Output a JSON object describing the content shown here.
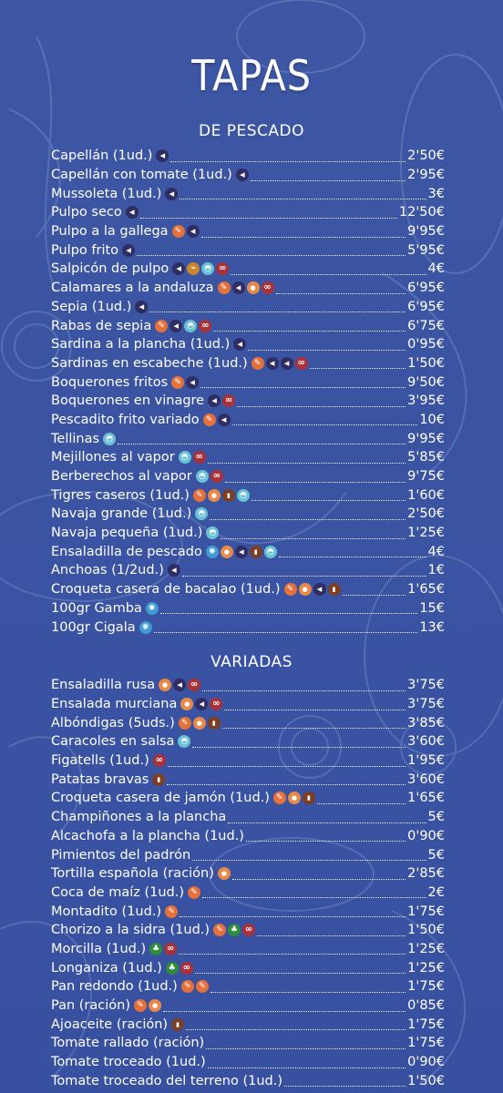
{
  "title": "TAPAS",
  "sections": [
    {
      "title": "DE PESCADO",
      "items": [
        {
          "name": "Capellán (1ud.)",
          "icons": [
            "fish"
          ],
          "price": "2'50€"
        },
        {
          "name": "Capellán con tomate (1ud.)",
          "icons": [
            "fish"
          ],
          "price": "2'95€"
        },
        {
          "name": "Mussoleta (1ud.)",
          "icons": [
            "fish"
          ],
          "price": "3€"
        },
        {
          "name": "Pulpo seco",
          "icons": [
            "fish"
          ],
          "price": "12'50€"
        },
        {
          "name": "Pulpo a la gallega",
          "icons": [
            "gluten",
            "fish"
          ],
          "price": "9'95€"
        },
        {
          "name": "Pulpo frito",
          "icons": [
            "fish"
          ],
          "price": "5'95€"
        },
        {
          "name": "Salpicón de pulpo",
          "icons": [
            "fish",
            "mustard",
            "mollusc",
            "sulfite"
          ],
          "price": "4€"
        },
        {
          "name": "Calamares a la andaluza",
          "icons": [
            "gluten",
            "fish",
            "egg",
            "sulfite"
          ],
          "price": "6'95€"
        },
        {
          "name": "Sepia (1ud.)",
          "icons": [
            "fish"
          ],
          "price": "6'95€"
        },
        {
          "name": "Rabas de sepia",
          "icons": [
            "gluten",
            "fish",
            "mollusc",
            "sulfite"
          ],
          "price": "6'75€"
        },
        {
          "name": "Sardina a la plancha (1ud.)",
          "icons": [
            "fish"
          ],
          "price": "0'95€"
        },
        {
          "name": "Sardinas en escabeche (1ud.)",
          "icons": [
            "gluten",
            "fish",
            "fish",
            "sulfite"
          ],
          "price": "1'50€"
        },
        {
          "name": "Boquerones fritos",
          "icons": [
            "gluten",
            "fish"
          ],
          "price": "9'50€"
        },
        {
          "name": "Boquerones en vinagre",
          "icons": [
            "fish",
            "sulfite"
          ],
          "price": "3'95€"
        },
        {
          "name": "Pescadito frito variado",
          "icons": [
            "gluten",
            "fish"
          ],
          "price": "10€"
        },
        {
          "name": "Tellinas",
          "icons": [
            "mollusc"
          ],
          "price": "9'95€"
        },
        {
          "name": "Mejillones al vapor",
          "icons": [
            "mollusc",
            "sulfite"
          ],
          "price": "5'85€"
        },
        {
          "name": "Berberechos al vapor",
          "icons": [
            "mollusc",
            "sulfite"
          ],
          "price": "9'75€"
        },
        {
          "name": "Tigres caseros (1ud.)",
          "icons": [
            "gluten",
            "egg",
            "milk",
            "mollusc"
          ],
          "price": "1'60€"
        },
        {
          "name": "Navaja grande (1ud.)",
          "icons": [
            "mollusc"
          ],
          "price": "2'50€"
        },
        {
          "name": "Navaja pequeña (1ud.)",
          "icons": [
            "mollusc"
          ],
          "price": "1'25€"
        },
        {
          "name": "Ensaladilla de pescado",
          "icons": [
            "crust",
            "egg",
            "fish",
            "milk",
            "mollusc"
          ],
          "price": "4€"
        },
        {
          "name": "Anchoas (1/2ud.)",
          "icons": [
            "fish"
          ],
          "price": "1€"
        },
        {
          "name": "Croqueta casera de bacalao (1ud.)",
          "icons": [
            "gluten",
            "egg",
            "fish",
            "milk"
          ],
          "price": "1'65€"
        },
        {
          "name": "100gr Gamba",
          "icons": [
            "crust"
          ],
          "price": "15€"
        },
        {
          "name": "100gr Cigala",
          "icons": [
            "crust"
          ],
          "price": "13€"
        }
      ]
    },
    {
      "title": "VARIADAS",
      "items": [
        {
          "name": "Ensaladilla rusa",
          "icons": [
            "egg",
            "fish",
            "sulfite"
          ],
          "price": "3'75€"
        },
        {
          "name": "Ensalada murciana",
          "icons": [
            "egg",
            "fish",
            "sulfite"
          ],
          "price": "3'75€"
        },
        {
          "name": "Albóndigas (5uds.)",
          "icons": [
            "gluten",
            "egg",
            "milk"
          ],
          "price": "3'85€"
        },
        {
          "name": "Caracoles en salsa",
          "icons": [
            "mollusc"
          ],
          "price": "3'60€"
        },
        {
          "name": "Figatells (1ud.)",
          "icons": [
            "sulfite"
          ],
          "price": "1'95€"
        },
        {
          "name": "Patatas bravas",
          "icons": [
            "milk"
          ],
          "price": "3'60€"
        },
        {
          "name": "Croqueta casera de jamón (1ud.)",
          "icons": [
            "gluten",
            "egg",
            "milk"
          ],
          "price": "1'65€"
        },
        {
          "name": "Champiñones a la plancha",
          "icons": [],
          "price": "5€"
        },
        {
          "name": "Alcachofa a la plancha (1ud.)",
          "icons": [],
          "price": "0'90€"
        },
        {
          "name": "Pimientos del padrón",
          "icons": [],
          "price": "5€"
        },
        {
          "name": "Tortilla española (ración)",
          "icons": [
            "egg"
          ],
          "price": "2'85€"
        },
        {
          "name": "Coca de maíz (1ud.)",
          "icons": [
            "gluten"
          ],
          "price": "2€"
        },
        {
          "name": "Montadito (1ud.)",
          "icons": [
            "gluten"
          ],
          "price": "1'75€"
        },
        {
          "name": "Chorizo a la sidra (1ud.)",
          "icons": [
            "gluten",
            "celery",
            "sulfite"
          ],
          "price": "1'50€"
        },
        {
          "name": "Morcilla (1ud.)",
          "icons": [
            "celery",
            "sulfite"
          ],
          "price": "1'25€"
        },
        {
          "name": "Longaniza (1ud.)",
          "icons": [
            "celery",
            "sulfite"
          ],
          "price": "1'25€"
        },
        {
          "name": "Pan redondo (1ud.)",
          "icons": [
            "gluten",
            "gluten"
          ],
          "price": "1'75€"
        },
        {
          "name": "Pan (ración)",
          "icons": [
            "gluten",
            "egg"
          ],
          "price": "0'85€"
        },
        {
          "name": "Ajoaceite (ración)",
          "icons": [
            "milk"
          ],
          "price": "1'75€"
        },
        {
          "name": "Tomate rallado (ración)",
          "icons": [],
          "price": "1'75€"
        },
        {
          "name": "Tomate troceado (1ud.)",
          "icons": [],
          "price": "0'90€"
        },
        {
          "name": "Tomate troceado del terreno (1ud.)",
          "icons": [],
          "price": "1'50€"
        }
      ]
    }
  ]
}
